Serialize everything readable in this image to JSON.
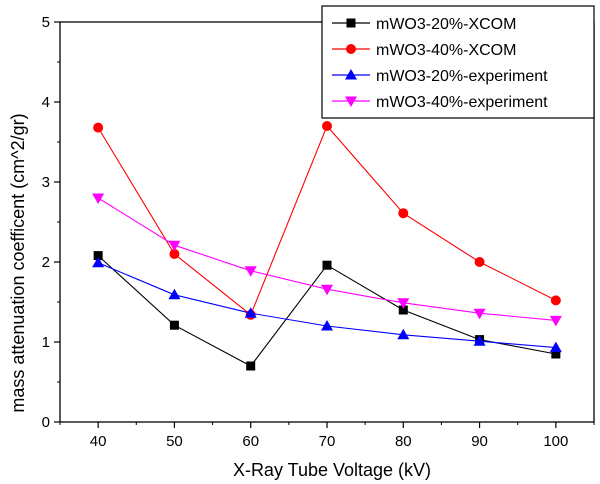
{
  "chart_data": {
    "type": "line",
    "title": "",
    "xlabel": "X-Ray Tube Voltage (kV)",
    "ylabel": "mass attenuation coefficent (cm^2/gr)",
    "x": [
      40,
      50,
      60,
      70,
      80,
      90,
      100
    ],
    "x_tick_labels": [
      "40",
      "50",
      "60",
      "70",
      "80",
      "90",
      "100"
    ],
    "y_ticks": [
      0,
      1,
      2,
      3,
      4,
      5
    ],
    "y_tick_labels": [
      "0",
      "1",
      "2",
      "3",
      "4",
      "5"
    ],
    "xlim": [
      35,
      105
    ],
    "ylim": [
      0,
      5
    ],
    "grid": false,
    "legend_position": "top-right",
    "series": [
      {
        "name": "mWO3-20%-XCOM",
        "color": "#000000",
        "marker": "square",
        "values": [
          2.08,
          1.21,
          0.7,
          1.96,
          1.4,
          1.03,
          0.85
        ]
      },
      {
        "name": "mWO3-40%-XCOM",
        "color": "#ff0000",
        "marker": "circle",
        "values": [
          3.68,
          2.1,
          1.34,
          3.7,
          2.61,
          2.0,
          1.52
        ]
      },
      {
        "name": "mWO3-20%-experiment",
        "color": "#0000ff",
        "marker": "triangle-up",
        "values": [
          1.99,
          1.59,
          1.36,
          1.2,
          1.09,
          1.01,
          0.93
        ]
      },
      {
        "name": "mWO3-40%-experiment",
        "color": "#ff00ff",
        "marker": "triangle-down",
        "values": [
          2.8,
          2.21,
          1.89,
          1.66,
          1.49,
          1.36,
          1.27
        ]
      }
    ]
  }
}
